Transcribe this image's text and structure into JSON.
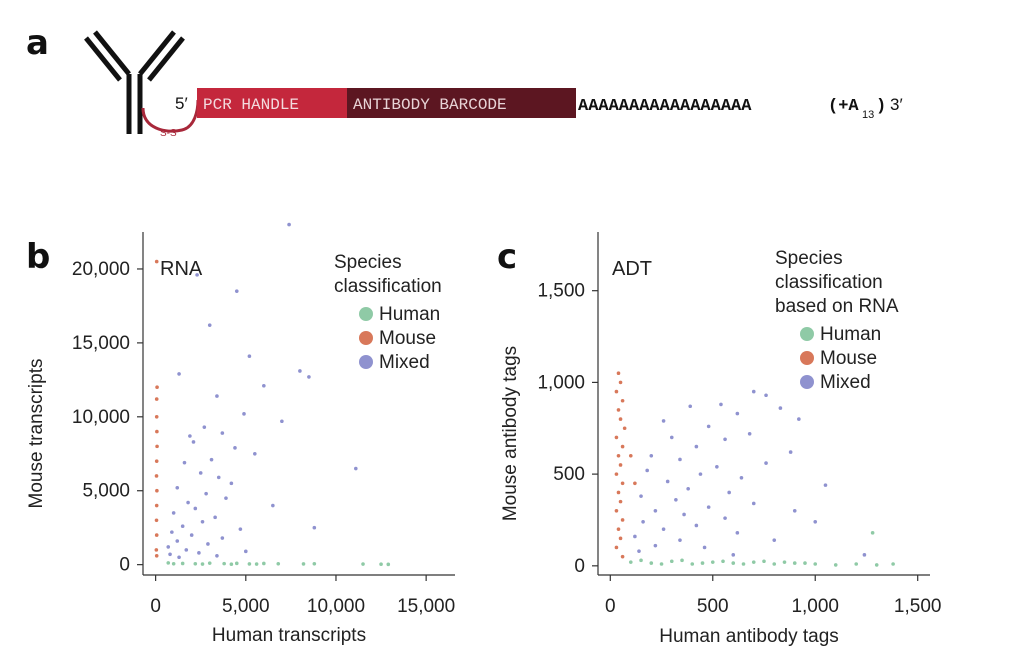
{
  "panel_a": {
    "letter": "a",
    "five_prime": "5′",
    "pcr_handle": "PCR HANDLE",
    "antibody_barcode": "ANTIBODY BARCODE",
    "poly_a": "AAAAAAAAAAAAAAAAA",
    "paren_open": "(+A",
    "subscript": "13",
    "paren_close": ")",
    "three_prime": "3′",
    "linker": "S-S",
    "colors": {
      "pcr": "#c4273c",
      "barcode": "#5c1621",
      "linker": "#a8283a"
    }
  },
  "colors": {
    "human": "#8fcaa6",
    "mouse": "#d8785a",
    "mixed": "#8f92cf"
  },
  "chart_data": [
    {
      "panel": "b",
      "type": "scatter",
      "title": "RNA",
      "xlabel": "Human transcripts",
      "ylabel": "Mouse transcripts",
      "xlim": [
        -700,
        16600
      ],
      "ylim": [
        -700,
        22500
      ],
      "xticks": [
        0,
        5000,
        10000,
        15000
      ],
      "xtick_labels": [
        "0",
        "5,000",
        "10,000",
        "15,000"
      ],
      "yticks": [
        0,
        5000,
        10000,
        15000,
        20000
      ],
      "ytick_labels": [
        "0",
        "5,000",
        "10,000",
        "15,000",
        "20,000"
      ],
      "legend_title": "Species\nclassification",
      "legend_placement": "top-right",
      "series": [
        {
          "name": "Human",
          "key": "human",
          "points": [
            [
              1500,
              80
            ],
            [
              2200,
              60
            ],
            [
              3000,
              100
            ],
            [
              3800,
              70
            ],
            [
              4500,
              90
            ],
            [
              5200,
              50
            ],
            [
              6000,
              80
            ],
            [
              6800,
              60
            ],
            [
              8200,
              50
            ],
            [
              8800,
              60
            ],
            [
              11500,
              40
            ],
            [
              12500,
              30
            ],
            [
              12900,
              20
            ],
            [
              700,
              120
            ],
            [
              1000,
              60
            ],
            [
              2600,
              40
            ],
            [
              4200,
              30
            ],
            [
              5600,
              40
            ]
          ]
        },
        {
          "name": "Mouse",
          "key": "mouse",
          "points": [
            [
              60,
              20500
            ],
            [
              80,
              12000
            ],
            [
              60,
              11200
            ],
            [
              60,
              10000
            ],
            [
              70,
              9000
            ],
            [
              80,
              8000
            ],
            [
              60,
              7000
            ],
            [
              50,
              6000
            ],
            [
              70,
              5000
            ],
            [
              60,
              4000
            ],
            [
              50,
              3000
            ],
            [
              60,
              2000
            ],
            [
              40,
              1000
            ],
            [
              60,
              600
            ]
          ]
        },
        {
          "name": "Mixed",
          "key": "mixed",
          "points": [
            [
              7400,
              23000
            ],
            [
              2300,
              19600
            ],
            [
              4500,
              18500
            ],
            [
              3000,
              16200
            ],
            [
              5200,
              14100
            ],
            [
              8000,
              13100
            ],
            [
              1300,
              12900
            ],
            [
              8500,
              12700
            ],
            [
              6000,
              12100
            ],
            [
              3400,
              11400
            ],
            [
              4900,
              10200
            ],
            [
              7000,
              9700
            ],
            [
              2700,
              9300
            ],
            [
              3700,
              8900
            ],
            [
              1900,
              8700
            ],
            [
              2100,
              8300
            ],
            [
              4400,
              7900
            ],
            [
              5500,
              7500
            ],
            [
              3100,
              7100
            ],
            [
              1600,
              6900
            ],
            [
              11100,
              6500
            ],
            [
              2500,
              6200
            ],
            [
              3500,
              5900
            ],
            [
              4200,
              5500
            ],
            [
              1200,
              5200
            ],
            [
              2800,
              4800
            ],
            [
              3900,
              4500
            ],
            [
              1800,
              4200
            ],
            [
              6500,
              4000
            ],
            [
              2200,
              3800
            ],
            [
              1000,
              3500
            ],
            [
              3300,
              3200
            ],
            [
              2600,
              2900
            ],
            [
              1500,
              2600
            ],
            [
              4700,
              2400
            ],
            [
              8800,
              2500
            ],
            [
              900,
              2200
            ],
            [
              2000,
              2000
            ],
            [
              3700,
              1800
            ],
            [
              1200,
              1600
            ],
            [
              2900,
              1400
            ],
            [
              700,
              1200
            ],
            [
              1700,
              1000
            ],
            [
              2400,
              800
            ],
            [
              3400,
              600
            ],
            [
              1300,
              500
            ],
            [
              5000,
              900
            ],
            [
              800,
              700
            ]
          ]
        }
      ]
    },
    {
      "panel": "c",
      "type": "scatter",
      "title": "ADT",
      "xlabel": "Human antibody tags",
      "ylabel": "Mouse antibody tags",
      "xlim": [
        -60,
        1560
      ],
      "ylim": [
        -50,
        1820
      ],
      "xticks": [
        0,
        500,
        1000,
        1500
      ],
      "xtick_labels": [
        "0",
        "500",
        "1,000",
        "1,500"
      ],
      "yticks": [
        0,
        500,
        1000,
        1500
      ],
      "ytick_labels": [
        "0",
        "500",
        "1,000",
        "1,500"
      ],
      "legend_title": "Species\nclassification\nbased on RNA",
      "legend_placement": "top-right",
      "series": [
        {
          "name": "Human",
          "key": "human",
          "points": [
            [
              100,
              20
            ],
            [
              200,
              15
            ],
            [
              300,
              25
            ],
            [
              400,
              10
            ],
            [
              500,
              20
            ],
            [
              600,
              15
            ],
            [
              700,
              20
            ],
            [
              800,
              10
            ],
            [
              900,
              15
            ],
            [
              1000,
              10
            ],
            [
              1100,
              5
            ],
            [
              1200,
              10
            ],
            [
              1300,
              5
            ],
            [
              1380,
              10
            ],
            [
              1280,
              180
            ],
            [
              150,
              30
            ],
            [
              250,
              10
            ],
            [
              350,
              30
            ],
            [
              450,
              15
            ],
            [
              550,
              25
            ],
            [
              650,
              10
            ],
            [
              750,
              25
            ],
            [
              850,
              20
            ],
            [
              950,
              15
            ]
          ]
        },
        {
          "name": "Mouse",
          "key": "mouse",
          "points": [
            [
              40,
              1050
            ],
            [
              50,
              1000
            ],
            [
              30,
              950
            ],
            [
              60,
              900
            ],
            [
              40,
              850
            ],
            [
              50,
              800
            ],
            [
              70,
              750
            ],
            [
              30,
              700
            ],
            [
              60,
              650
            ],
            [
              40,
              600
            ],
            [
              50,
              550
            ],
            [
              30,
              500
            ],
            [
              60,
              450
            ],
            [
              40,
              400
            ],
            [
              50,
              350
            ],
            [
              30,
              300
            ],
            [
              60,
              250
            ],
            [
              40,
              200
            ],
            [
              50,
              150
            ],
            [
              30,
              100
            ],
            [
              60,
              50
            ],
            [
              100,
              600
            ],
            [
              120,
              450
            ]
          ]
        },
        {
          "name": "Mixed",
          "key": "mixed",
          "points": [
            [
              700,
              950
            ],
            [
              760,
              930
            ],
            [
              540,
              880
            ],
            [
              390,
              870
            ],
            [
              620,
              830
            ],
            [
              830,
              860
            ],
            [
              920,
              800
            ],
            [
              260,
              790
            ],
            [
              480,
              760
            ],
            [
              680,
              720
            ],
            [
              300,
              700
            ],
            [
              560,
              690
            ],
            [
              420,
              650
            ],
            [
              880,
              620
            ],
            [
              200,
              600
            ],
            [
              340,
              580
            ],
            [
              760,
              560
            ],
            [
              520,
              540
            ],
            [
              180,
              520
            ],
            [
              440,
              500
            ],
            [
              640,
              480
            ],
            [
              1050,
              440
            ],
            [
              280,
              460
            ],
            [
              380,
              420
            ],
            [
              580,
              400
            ],
            [
              150,
              380
            ],
            [
              320,
              360
            ],
            [
              700,
              340
            ],
            [
              480,
              320
            ],
            [
              220,
              300
            ],
            [
              900,
              300
            ],
            [
              360,
              280
            ],
            [
              560,
              260
            ],
            [
              160,
              240
            ],
            [
              420,
              220
            ],
            [
              260,
              200
            ],
            [
              620,
              180
            ],
            [
              120,
              160
            ],
            [
              340,
              140
            ],
            [
              220,
              110
            ],
            [
              460,
              100
            ],
            [
              1240,
              60
            ],
            [
              800,
              140
            ],
            [
              600,
              60
            ],
            [
              1000,
              240
            ],
            [
              140,
              80
            ]
          ]
        }
      ]
    }
  ]
}
